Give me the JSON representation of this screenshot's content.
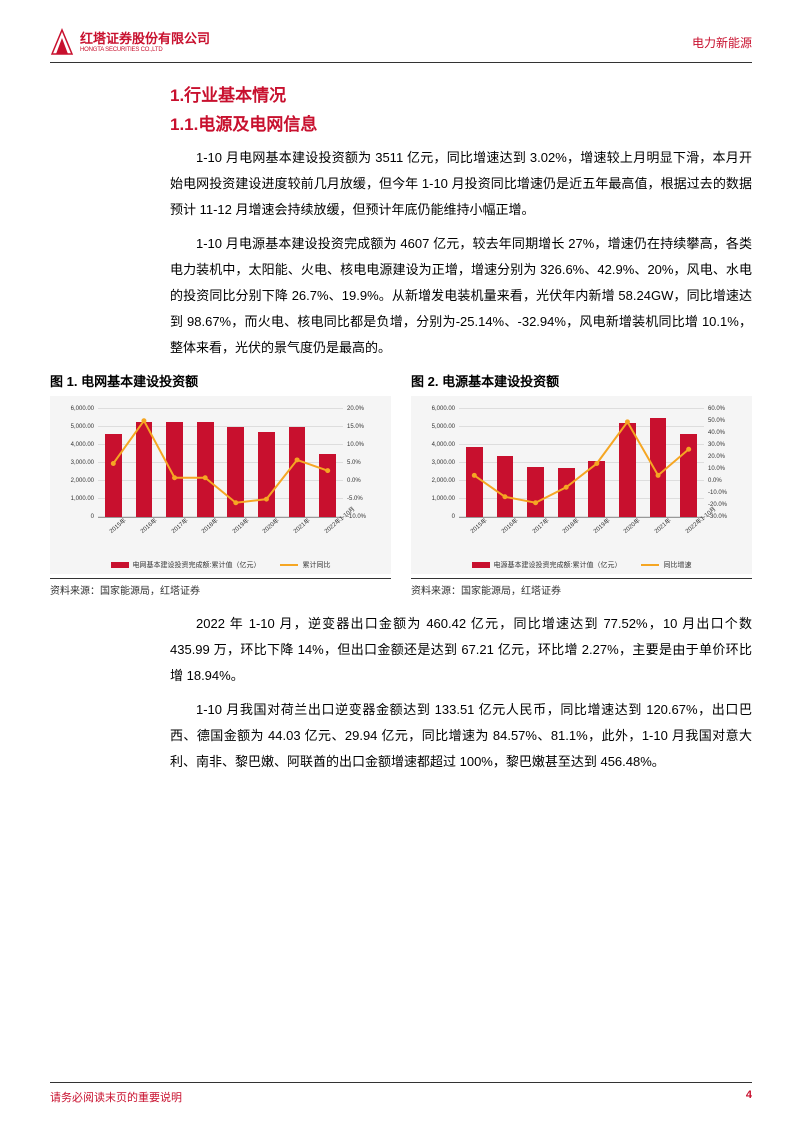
{
  "header": {
    "logo_cn": "红塔证券股份有限公司",
    "logo_en": "HONGTA SECURITIES CO.,LTD",
    "sector": "电力新能源"
  },
  "h1": "1.行业基本情况",
  "h11": "1.1.电源及电网信息",
  "p1": "1-10 月电网基本建设投资额为 3511 亿元，同比增速达到 3.02%，增速较上月明显下滑，本月开始电网投资建设进度较前几月放缓，但今年 1-10 月投资同比增速仍是近五年最高值，根据过去的数据预计 11-12 月增速会持续放缓，但预计年底仍能维持小幅正增。",
  "p2": "1-10 月电源基本建设投资完成额为 4607 亿元，较去年同期增长 27%，增速仍在持续攀高，各类电力装机中，太阳能、火电、核电电源建设为正增，增速分别为 326.6%、42.9%、20%，风电、水电的投资同比分别下降 26.7%、19.9%。从新增发电装机量来看，光伏年内新增 58.24GW，同比增速达到 98.67%，而火电、核电同比都是负增，分别为-25.14%、-32.94%，风电新增装机同比增 10.1%，整体来看，光伏的景气度仍是最高的。",
  "p3": "2022 年 1-10 月，逆变器出口金额为 460.42 亿元，同比增速达到 77.52%，10 月出口个数 435.99 万，环比下降 14%，但出口金额还是达到 67.21 亿元，环比增 2.27%，主要是由于单价环比增 18.94%。",
  "p4": "1-10 月我国对荷兰出口逆变器金额达到 133.51 亿元人民币，同比增速达到 120.67%，出口巴西、德国金额为 44.03 亿元、29.94 亿元，同比增速为 84.57%、81.1%，此外，1-10 月我国对意大利、南非、黎巴嫩、阿联酋的出口金额增速都超过 100%，黎巴嫩甚至达到 456.48%。",
  "chart1": {
    "title": "图 1. 电网基本建设投资额",
    "source": "资料来源：国家能源局，红塔证券",
    "type": "bar+line",
    "xlabels": [
      "2015年",
      "2016年",
      "2017年",
      "2018年",
      "2019年",
      "2020年",
      "2021年",
      "2022年1-10月"
    ],
    "bar_values": [
      4600,
      5300,
      5300,
      5300,
      5000,
      4700,
      5000,
      3500
    ],
    "line_values": [
      5,
      17,
      1,
      1,
      -6,
      -5,
      6,
      3
    ],
    "left_axis": {
      "min": 0,
      "max": 6000,
      "step": 1000,
      "ticks": [
        "0",
        "1,000.00",
        "2,000.00",
        "3,000.00",
        "4,000.00",
        "5,000.00",
        "6,000.00"
      ]
    },
    "right_axis": {
      "min": -10,
      "max": 20,
      "step": 5,
      "ticks": [
        "-10.0%",
        "-5.0%",
        "0.0%",
        "5.0%",
        "10.0%",
        "15.0%",
        "20.0%"
      ]
    },
    "bar_color": "#c8102e",
    "line_color": "#f5a623",
    "bg": "#f5f5f5",
    "legend_bar": "电网基本建设投资完成额:累计值（亿元）",
    "legend_line": "累计同比"
  },
  "chart2": {
    "title": "图 2. 电源基本建设投资额",
    "source": "资料来源：国家能源局，红塔证券",
    "type": "bar+line",
    "xlabels": [
      "2015年",
      "2016年",
      "2017年",
      "2018年",
      "2019年",
      "2020年",
      "2021年",
      "2022年1-10月"
    ],
    "bar_values": [
      3900,
      3400,
      2800,
      2700,
      3100,
      5200,
      5500,
      4600
    ],
    "line_values": [
      5,
      -13,
      -18,
      -5,
      15,
      50,
      5,
      27
    ],
    "left_axis": {
      "min": 0,
      "max": 6000,
      "step": 1000,
      "ticks": [
        "0",
        "1,000.00",
        "2,000.00",
        "3,000.00",
        "4,000.00",
        "5,000.00",
        "6,000.00"
      ]
    },
    "right_axis": {
      "min": -30,
      "max": 60,
      "step": 10,
      "ticks": [
        "-30.0%",
        "-20.0%",
        "-10.0%",
        "0.0%",
        "10.0%",
        "20.0%",
        "30.0%",
        "40.0%",
        "50.0%",
        "60.0%"
      ]
    },
    "bar_color": "#c8102e",
    "line_color": "#f5a623",
    "bg": "#f5f5f5",
    "legend_bar": "电源基本建设投资完成额:累计值（亿元）",
    "legend_line": "同比增速"
  },
  "footer": {
    "left": "请务必阅读末页的重要说明",
    "page": "4"
  }
}
